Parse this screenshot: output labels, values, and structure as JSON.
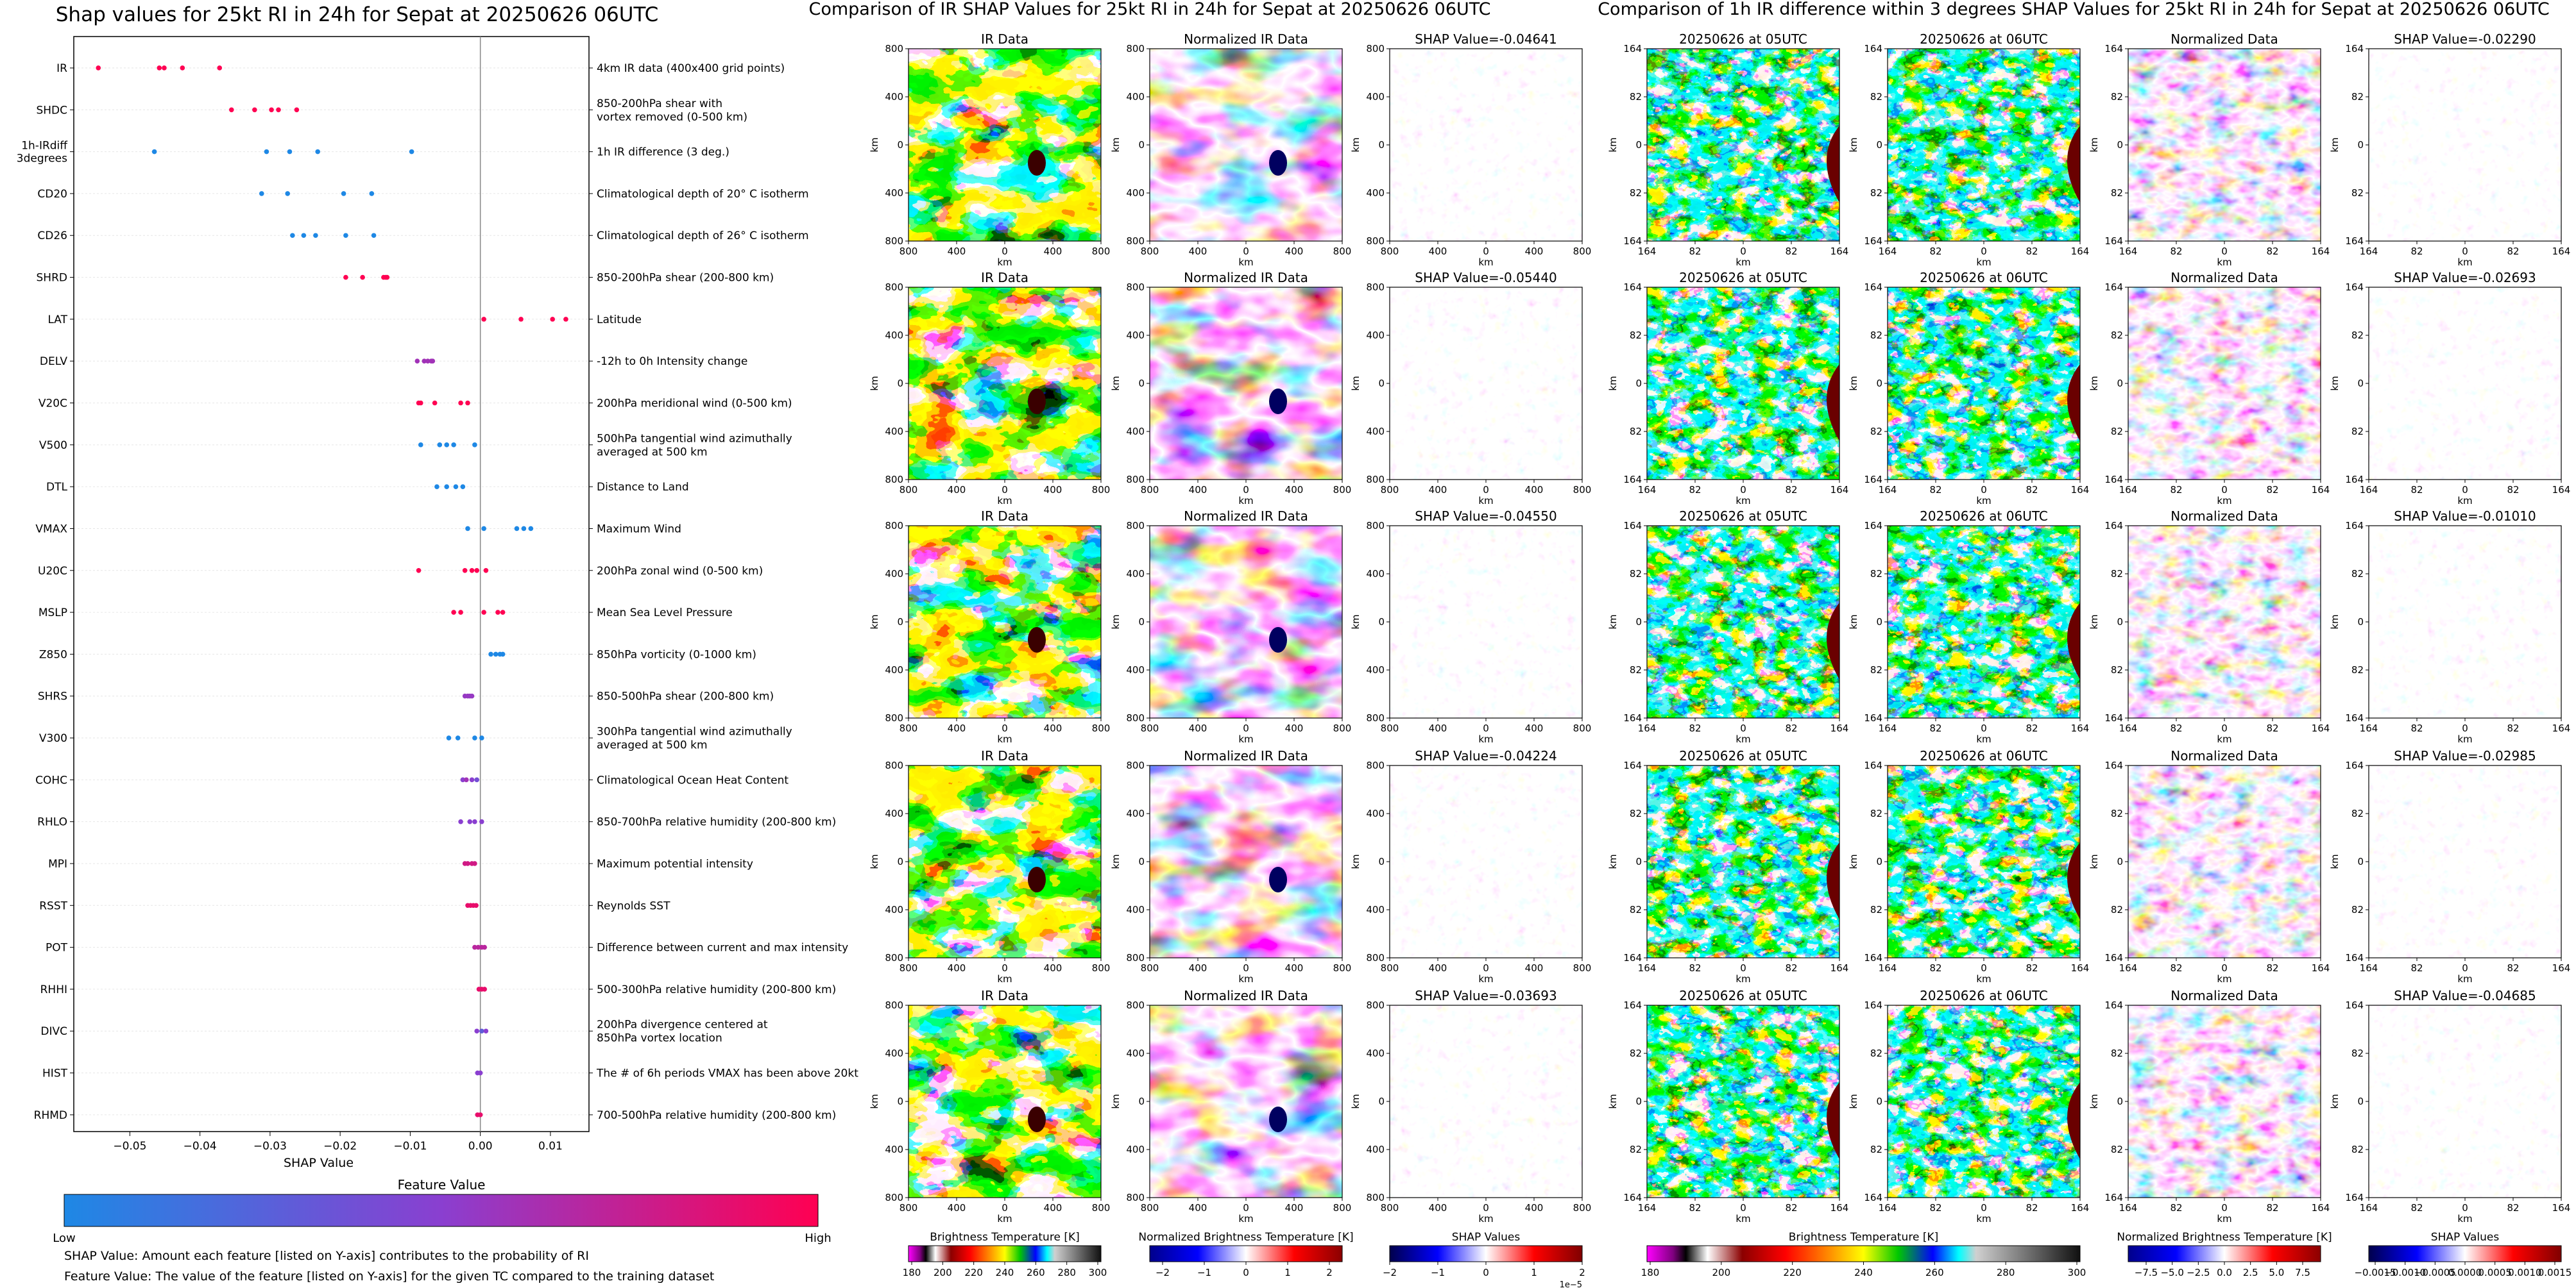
{
  "colors": {
    "feature_low": "#1e88e5",
    "feature_high": "#ff0052",
    "grid": "#e6e6e6",
    "zero_line": "#888888"
  },
  "chart_data": [
    {
      "type": "scatter",
      "title": "Shap values for 25kt RI in 24h for Sepat at 20250626 06UTC",
      "xlabel": "SHAP Value",
      "xlim": [
        -0.058,
        0.0155
      ],
      "xticks": [
        -0.05,
        -0.04,
        -0.03,
        -0.02,
        -0.01,
        0.0,
        0.01
      ],
      "xtick_labels": [
        "−0.05",
        "−0.04",
        "−0.03",
        "−0.02",
        "−0.01",
        "0.00",
        "0.01"
      ],
      "colorbar": {
        "label": "Feature Value",
        "low": "Low",
        "high": "High"
      },
      "features": [
        {
          "name": "IR",
          "desc": [
            "4km IR data (400x400 grid points)"
          ],
          "points": [
            [
              -0.0545,
              1.0
            ],
            [
              -0.0458,
              1.0
            ],
            [
              -0.0451,
              1.0
            ],
            [
              -0.0425,
              1.0
            ],
            [
              -0.0372,
              1.0
            ]
          ]
        },
        {
          "name": "SHDC",
          "desc": [
            "850-200hPa shear with",
            "vortex removed (0-500 km)"
          ],
          "points": [
            [
              -0.0355,
              1.0
            ],
            [
              -0.0322,
              1.0
            ],
            [
              -0.0298,
              1.0
            ],
            [
              -0.0288,
              1.0
            ],
            [
              -0.0262,
              1.0
            ]
          ]
        },
        {
          "name": "1h-IRdiff\n3degrees",
          "desc": [
            "1h IR difference (3 deg.)"
          ],
          "points": [
            [
              -0.0465,
              0.0
            ],
            [
              -0.0305,
              0.0
            ],
            [
              -0.0272,
              0.0
            ],
            [
              -0.0232,
              0.0
            ],
            [
              -0.0098,
              0.0
            ]
          ]
        },
        {
          "name": "CD20",
          "desc": [
            "Climatological depth of 20° C isotherm"
          ],
          "points": [
            [
              -0.0312,
              0.0
            ],
            [
              -0.0275,
              0.0
            ],
            [
              -0.0195,
              0.0
            ],
            [
              -0.0155,
              0.0
            ]
          ]
        },
        {
          "name": "CD26",
          "desc": [
            "Climatological depth of 26° C isotherm"
          ],
          "points": [
            [
              -0.0268,
              0.0
            ],
            [
              -0.0252,
              0.0
            ],
            [
              -0.0235,
              0.0
            ],
            [
              -0.0192,
              0.0
            ],
            [
              -0.0152,
              0.0
            ]
          ]
        },
        {
          "name": "SHRD",
          "desc": [
            "850-200hPa shear (200-800 km)"
          ],
          "points": [
            [
              -0.0192,
              1.0
            ],
            [
              -0.0168,
              1.0
            ],
            [
              -0.0138,
              1.0
            ],
            [
              -0.0135,
              1.0
            ],
            [
              -0.0133,
              1.0
            ]
          ]
        },
        {
          "name": "LAT",
          "desc": [
            "Latitude"
          ],
          "points": [
            [
              0.0005,
              1.0
            ],
            [
              0.0058,
              1.0
            ],
            [
              0.0103,
              1.0
            ],
            [
              0.0122,
              1.0
            ]
          ]
        },
        {
          "name": "DELV",
          "desc": [
            "-12h to 0h Intensity change"
          ],
          "points": [
            [
              -0.009,
              0.6
            ],
            [
              -0.008,
              0.6
            ],
            [
              -0.0075,
              0.6
            ],
            [
              -0.007,
              0.6
            ],
            [
              -0.0068,
              0.6
            ]
          ]
        },
        {
          "name": "V20C",
          "desc": [
            "200hPa meridional wind (0-500 km)"
          ],
          "points": [
            [
              -0.0088,
              1.0
            ],
            [
              -0.0085,
              1.0
            ],
            [
              -0.0065,
              1.0
            ],
            [
              -0.0028,
              1.0
            ],
            [
              -0.0018,
              1.0
            ]
          ]
        },
        {
          "name": "V500",
          "desc": [
            "500hPa tangential wind azimuthally",
            "averaged at 500 km"
          ],
          "points": [
            [
              -0.0085,
              0.0
            ],
            [
              -0.0058,
              0.0
            ],
            [
              -0.0048,
              0.0
            ],
            [
              -0.0038,
              0.0
            ],
            [
              -0.0008,
              0.0
            ]
          ]
        },
        {
          "name": "DTL",
          "desc": [
            "Distance to Land"
          ],
          "points": [
            [
              -0.0062,
              0.0
            ],
            [
              -0.0048,
              0.0
            ],
            [
              -0.0035,
              0.0
            ],
            [
              -0.0025,
              0.0
            ]
          ]
        },
        {
          "name": "VMAX",
          "desc": [
            "Maximum Wind"
          ],
          "points": [
            [
              -0.0018,
              0.0
            ],
            [
              0.0005,
              0.0
            ],
            [
              0.0052,
              0.0
            ],
            [
              0.0062,
              0.0
            ],
            [
              0.0072,
              0.0
            ]
          ]
        },
        {
          "name": "U20C",
          "desc": [
            "200hPa zonal wind (0-500 km)"
          ],
          "points": [
            [
              -0.0088,
              1.0
            ],
            [
              -0.0022,
              1.0
            ],
            [
              -0.0012,
              1.0
            ],
            [
              -0.0005,
              1.0
            ],
            [
              0.0008,
              1.0
            ]
          ]
        },
        {
          "name": "MSLP",
          "desc": [
            "Mean Sea Level Pressure"
          ],
          "points": [
            [
              -0.0038,
              1.0
            ],
            [
              -0.0028,
              1.0
            ],
            [
              0.0005,
              1.0
            ],
            [
              0.0025,
              1.0
            ],
            [
              0.0032,
              1.0
            ]
          ]
        },
        {
          "name": "Z850",
          "desc": [
            "850hPa vorticity (0-1000 km)"
          ],
          "points": [
            [
              0.0015,
              0.0
            ],
            [
              0.0022,
              0.0
            ],
            [
              0.0028,
              0.0
            ],
            [
              0.0032,
              0.0
            ]
          ]
        },
        {
          "name": "SHRS",
          "desc": [
            "850-500hPa shear (200-800 km)"
          ],
          "points": [
            [
              -0.0022,
              0.55
            ],
            [
              -0.0018,
              0.55
            ],
            [
              -0.0015,
              0.55
            ],
            [
              -0.0012,
              0.55
            ]
          ]
        },
        {
          "name": "V300",
          "desc": [
            "300hPa tangential wind azimuthally",
            "averaged at 500 km"
          ],
          "points": [
            [
              -0.0045,
              0.0
            ],
            [
              -0.0032,
              0.0
            ],
            [
              -0.0008,
              0.0
            ],
            [
              0.0002,
              0.0
            ]
          ]
        },
        {
          "name": "COHC",
          "desc": [
            "Climatological Ocean Heat Content"
          ],
          "points": [
            [
              -0.0025,
              0.5
            ],
            [
              -0.002,
              0.6
            ],
            [
              -0.0012,
              0.5
            ],
            [
              -0.0005,
              0.4
            ]
          ]
        },
        {
          "name": "RHLO",
          "desc": [
            "850-700hPa relative humidity (200-800 km)"
          ],
          "points": [
            [
              -0.0028,
              0.5
            ],
            [
              -0.0015,
              0.5
            ],
            [
              -0.0008,
              0.5
            ],
            [
              0.0002,
              0.5
            ]
          ]
        },
        {
          "name": "MPI",
          "desc": [
            "Maximum potential intensity"
          ],
          "points": [
            [
              -0.0022,
              0.8
            ],
            [
              -0.0018,
              0.8
            ],
            [
              -0.0012,
              0.8
            ],
            [
              -0.0008,
              0.8
            ]
          ]
        },
        {
          "name": "RSST",
          "desc": [
            "Reynolds SST"
          ],
          "points": [
            [
              -0.0018,
              0.9
            ],
            [
              -0.0014,
              0.9
            ],
            [
              -0.001,
              0.9
            ],
            [
              -0.0006,
              0.9
            ]
          ]
        },
        {
          "name": "POT",
          "desc": [
            "Difference between current and max intensity"
          ],
          "points": [
            [
              -0.0008,
              0.7
            ],
            [
              -0.0003,
              0.7
            ],
            [
              0.0002,
              0.7
            ],
            [
              0.0006,
              0.7
            ]
          ]
        },
        {
          "name": "RHHI",
          "desc": [
            "500-300hPa relative humidity (200-800 km)"
          ],
          "points": [
            [
              -0.0002,
              0.9
            ],
            [
              0.0002,
              0.9
            ],
            [
              0.0006,
              0.9
            ]
          ]
        },
        {
          "name": "DIVC",
          "desc": [
            "200hPa divergence centered at",
            "850hPa vortex location"
          ],
          "points": [
            [
              -0.0005,
              0.5
            ],
            [
              0.0002,
              0.3
            ],
            [
              0.0008,
              0.5
            ]
          ]
        },
        {
          "name": "HIST",
          "desc": [
            "The # of 6h periods VMAX has been above 20kt"
          ],
          "points": [
            [
              -0.0004,
              0.5
            ],
            [
              0.0,
              0.5
            ]
          ]
        },
        {
          "name": "RHMD",
          "desc": [
            "700-500hPa relative humidity (200-800 km)"
          ],
          "points": [
            [
              -0.0004,
              0.9
            ],
            [
              0.0,
              0.9
            ]
          ]
        }
      ]
    },
    {
      "type": "heatmap",
      "title": "Comparison of IR SHAP Values for 25kt RI in 24h for Sepat at 20250626 06UTC",
      "rows": 5,
      "columns": [
        {
          "title": "IR Data",
          "colormap": "ir"
        },
        {
          "title": "Normalized IR Data",
          "colormap": "bwr"
        },
        {
          "title": "SHAP Value",
          "colormap": "seismic_light"
        }
      ],
      "shap_values": [
        "-0.04641",
        "-0.05440",
        "-0.04550",
        "-0.04224",
        "-0.03693"
      ],
      "axis_label": "km",
      "ticks": [
        "800",
        "400",
        "0",
        "400",
        "800"
      ],
      "colorbars": [
        {
          "label": "Brightness Temperature [K]",
          "ticks": [
            "180",
            "200",
            "220",
            "240",
            "260",
            "280",
            "300"
          ]
        },
        {
          "label": "Normalized Brightness Temperature [K]",
          "ticks": [
            "−2",
            "−1",
            "0",
            "1",
            "2"
          ]
        },
        {
          "label": "SHAP Values",
          "ticks": [
            "−2",
            "−1",
            "0",
            "1",
            "2"
          ],
          "offset": "1e−5"
        }
      ]
    },
    {
      "type": "heatmap",
      "title": "Comparison of 1h IR difference within 3 degrees SHAP Values for 25kt RI in 24h for Sepat at 20250626 06UTC",
      "rows": 5,
      "columns": [
        {
          "title": "20250626 at 05UTC",
          "colormap": "ir"
        },
        {
          "title": "20250626 at 06UTC",
          "colormap": "ir"
        },
        {
          "title": "Normalized Data",
          "colormap": "bwr"
        },
        {
          "title": "SHAP Value",
          "colormap": "seismic_light"
        }
      ],
      "shap_values": [
        "-0.02290",
        "-0.02693",
        "-0.01010",
        "-0.02985",
        "-0.04685"
      ],
      "axis_label": "km",
      "ticks": [
        "164",
        "82",
        "0",
        "82",
        "164"
      ],
      "colorbars": [
        {
          "label": "Brightness Temperature [K]",
          "ticks": [
            "180",
            "200",
            "220",
            "240",
            "260",
            "280",
            "300"
          ]
        },
        {
          "label": "Normalized Brightness Temperature [K]",
          "ticks": [
            "−7.5",
            "−5.0",
            "−2.5",
            "0.0",
            "2.5",
            "5.0",
            "7.5"
          ]
        },
        {
          "label": "SHAP Values",
          "ticks": [
            "−0.0015",
            "−0.0010",
            "−0.0005",
            "0.0000",
            "0.0005",
            "0.0010",
            "0.0015"
          ]
        }
      ]
    }
  ],
  "notes": [
    "SHAP Value: Amount each feature [listed on Y-axis] contributes to the probability of RI",
    "Feature Value: The value of the feature [listed on Y-axis] for the given TC compared to the training dataset"
  ]
}
